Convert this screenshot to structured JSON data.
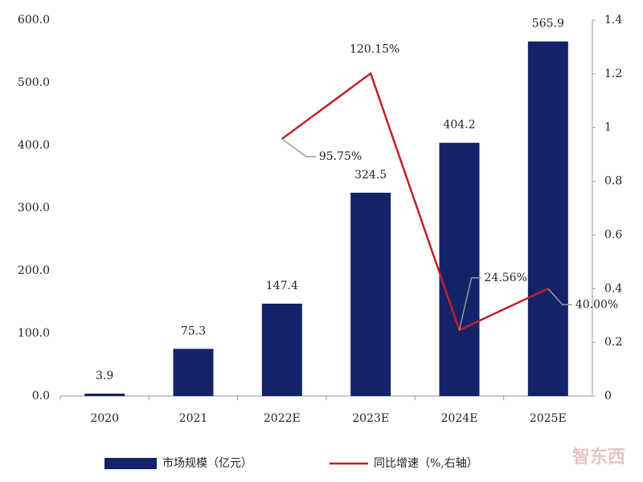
{
  "chart_data": {
    "type": "bar",
    "categories": [
      "2020",
      "2021",
      "2022E",
      "2023E",
      "2024E",
      "2025E"
    ],
    "series": [
      {
        "name": "市场规模（亿元）",
        "type": "bar",
        "color": "#14226a",
        "values": [
          3.9,
          75.3,
          147.4,
          324.5,
          404.2,
          565.9
        ]
      },
      {
        "name": "同比增速（%,右轴）",
        "type": "line",
        "axis": "y2",
        "color": "#c0202a",
        "values": [
          null,
          null,
          0.9575,
          1.2015,
          0.2456,
          0.4
        ],
        "value_labels": [
          null,
          null,
          "95.75%",
          "120.15%",
          "24.56%",
          "40.00%"
        ]
      }
    ],
    "ylim": [
      0,
      600
    ],
    "yticks": [
      {
        "value": 0,
        "label": "0.0"
      },
      {
        "value": 100,
        "label": "100.0"
      },
      {
        "value": 200,
        "label": "200.0"
      },
      {
        "value": 300,
        "label": "300.0"
      },
      {
        "value": 400,
        "label": "400.0"
      },
      {
        "value": 500,
        "label": "500.0"
      },
      {
        "value": 600,
        "label": "600.0"
      }
    ],
    "y2lim": [
      0,
      1.4
    ],
    "y2ticks": [
      0,
      0.2,
      0.4,
      0.6,
      0.8,
      1,
      1.2,
      1.4
    ],
    "legend": "bottom",
    "watermark": "智东西"
  }
}
